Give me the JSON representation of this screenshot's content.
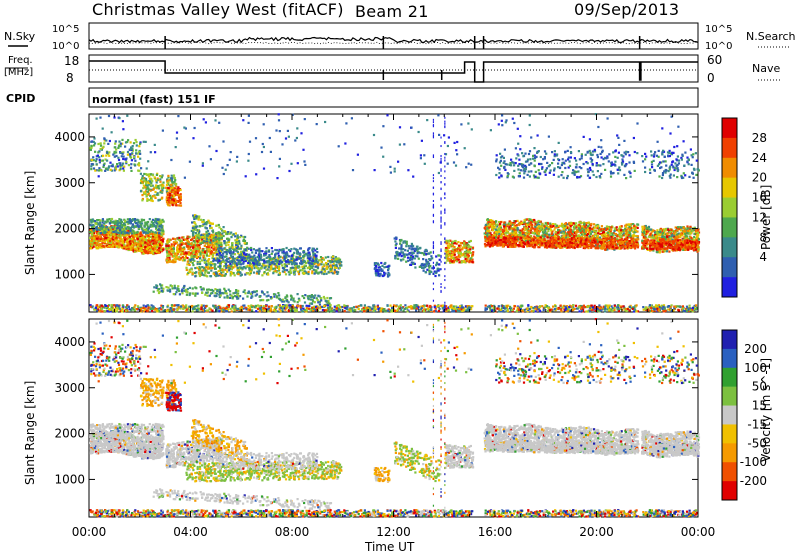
{
  "header": {
    "station": "Christmas Valley West (fitACF)",
    "beam": "Beam 21",
    "date": "09/Sep/2013"
  },
  "noise_panel": {
    "left_label": "N.Sky",
    "right_label": "N.Search",
    "left_ticks": [
      "10^5",
      "10^0"
    ],
    "right_ticks": [
      "10^5",
      "10^0"
    ]
  },
  "freq_panel": {
    "left_label_1": "Freq.",
    "left_label_2": "[MHz]",
    "right_label": "Nave",
    "left_ticks": [
      "18",
      "8"
    ],
    "right_ticks": [
      "60",
      "0"
    ]
  },
  "cpid": {
    "label": "CPID",
    "mode": "normal (fast) 151 IF"
  },
  "colors": {
    "power_scale": [
      "#2020e0",
      "#2f5fb0",
      "#3a8a8a",
      "#4ea84e",
      "#9acd32",
      "#e6c700",
      "#f08c00",
      "#f04000",
      "#e00000"
    ],
    "velocity_scale": [
      "#e00000",
      "#f05000",
      "#f59a00",
      "#f0c000",
      "#c8c8c8",
      "#7cc040",
      "#30a030",
      "#2a60c0",
      "#2020b0"
    ]
  },
  "chart_data": [
    {
      "type": "heatmap",
      "title": "Power",
      "ylabel": "Slant Range [km]",
      "xlabel": "Time UT",
      "colorbar_label": "Power [dB]",
      "colorbar_ticks": [
        "28",
        "24",
        "20",
        "16",
        "12",
        "8",
        "4"
      ],
      "y_ticks": [
        "4000",
        "3000",
        "2000",
        "1000"
      ],
      "ylim": [
        180,
        4500
      ],
      "xlim": [
        "00:00",
        "24:00"
      ]
    },
    {
      "type": "heatmap",
      "title": "Velocity",
      "ylabel": "Slant Range [km]",
      "xlabel": "Time UT",
      "colorbar_label": "Velocity [m s^-1]",
      "colorbar_ticks": [
        "200",
        "100",
        "50",
        "15",
        "-15",
        "-50",
        "-100",
        "-200"
      ],
      "y_ticks": [
        "4000",
        "3000",
        "2000",
        "1000"
      ],
      "x_ticks": [
        "00:00",
        "04:00",
        "08:00",
        "12:00",
        "16:00",
        "20:00",
        "00:00"
      ],
      "ylim": [
        180,
        4500
      ],
      "xlim": [
        "00:00",
        "24:00"
      ]
    }
  ]
}
